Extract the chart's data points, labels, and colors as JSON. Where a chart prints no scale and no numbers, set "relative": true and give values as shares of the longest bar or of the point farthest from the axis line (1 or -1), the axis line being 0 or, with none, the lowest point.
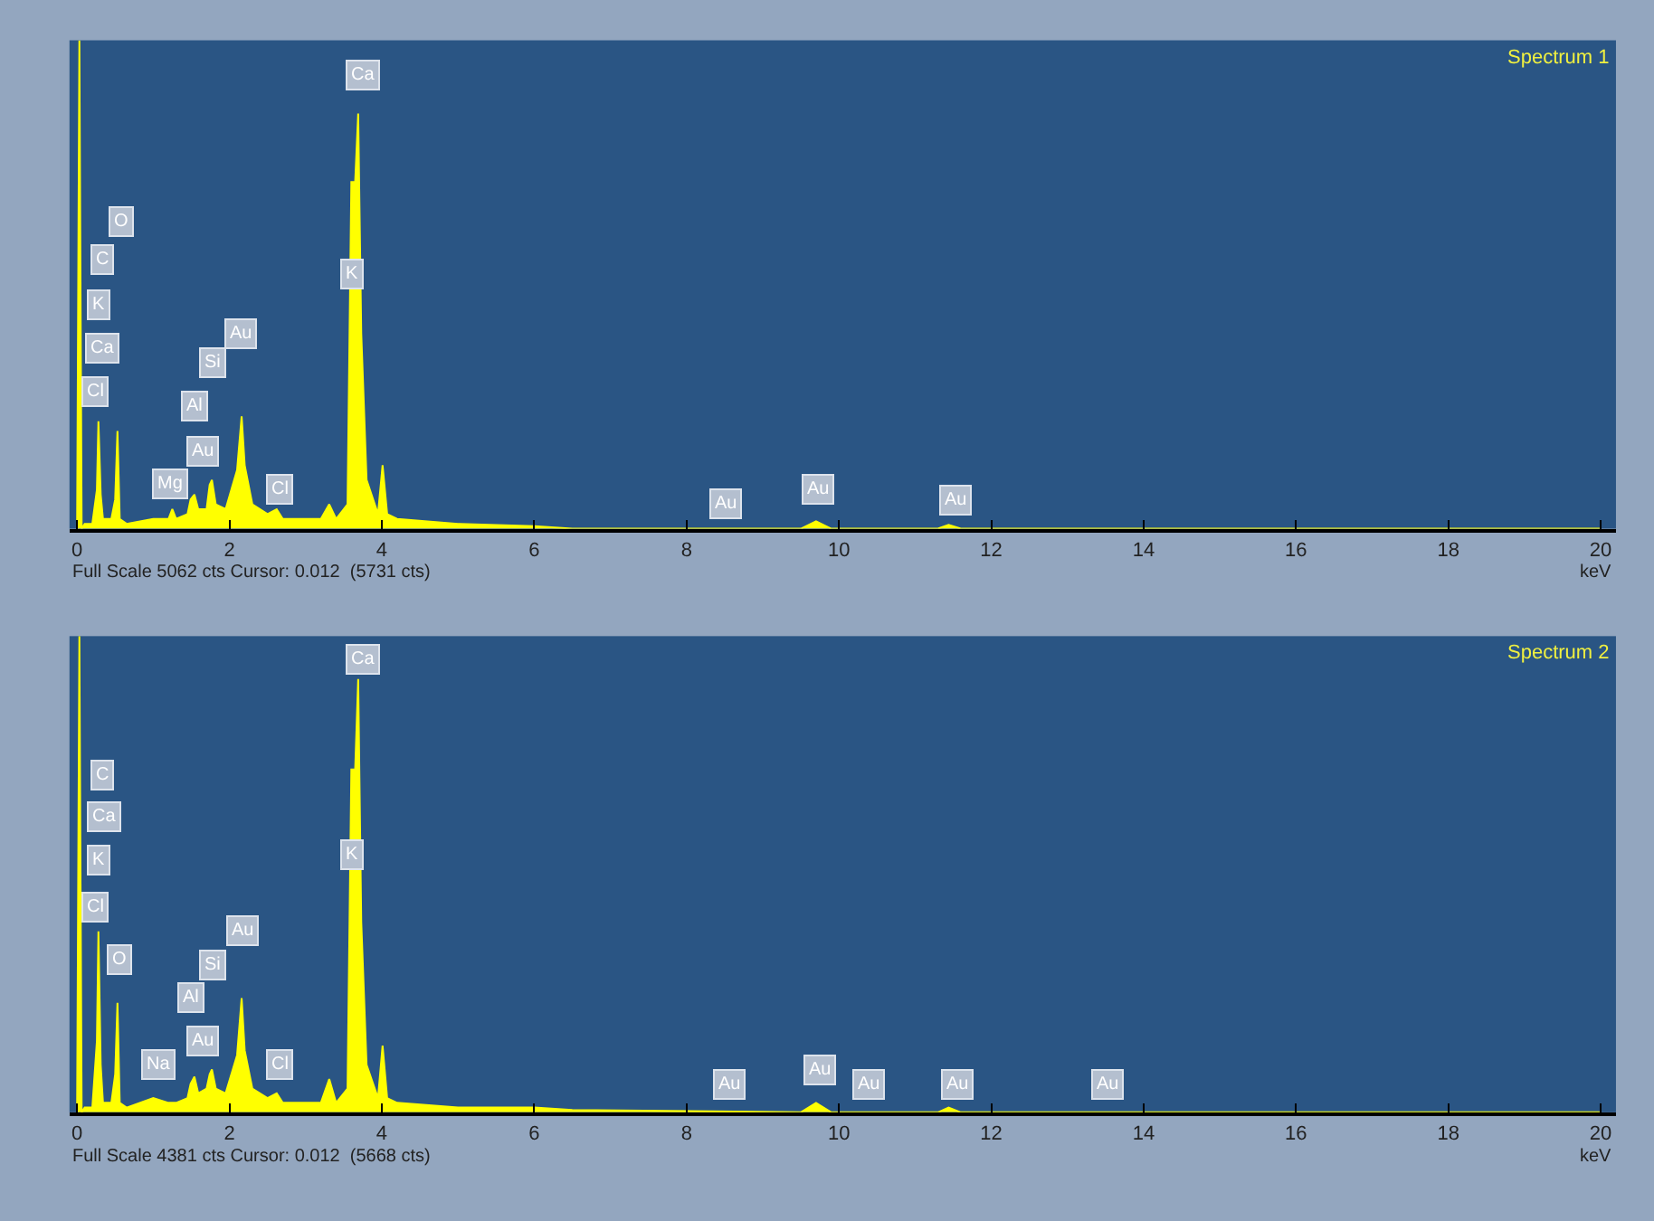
{
  "chart_data": [
    {
      "type": "area",
      "relative": true,
      "title": "Spectrum 1",
      "xlabel": "keV",
      "color": "#ffff00",
      "xlim": [
        -0.1,
        20.2
      ],
      "xticks": [
        0,
        2,
        4,
        6,
        8,
        10,
        12,
        14,
        16,
        18,
        20
      ],
      "x": [
        0,
        0.03,
        0.06,
        0.1,
        0.2,
        0.26,
        0.28,
        0.31,
        0.34,
        0.45,
        0.5,
        0.53,
        0.56,
        0.65,
        1.0,
        1.2,
        1.25,
        1.3,
        1.45,
        1.49,
        1.54,
        1.59,
        1.7,
        1.74,
        1.77,
        1.82,
        1.95,
        2.1,
        2.16,
        2.2,
        2.3,
        2.5,
        2.62,
        2.7,
        3.2,
        3.31,
        3.4,
        3.55,
        3.6,
        3.65,
        3.69,
        3.73,
        3.8,
        3.95,
        4.01,
        4.07,
        4.2,
        5.0,
        6.0,
        6.5,
        9.5,
        9.7,
        9.9,
        11.3,
        11.44,
        11.6,
        20
      ],
      "values": [
        0,
        1,
        0,
        0.01,
        0.01,
        0.08,
        0.22,
        0.07,
        0.02,
        0.02,
        0.06,
        0.2,
        0.02,
        0.01,
        0.02,
        0.02,
        0.04,
        0.02,
        0.03,
        0.06,
        0.07,
        0.04,
        0.04,
        0.09,
        0.1,
        0.05,
        0.04,
        0.12,
        0.23,
        0.13,
        0.05,
        0.03,
        0.04,
        0.02,
        0.02,
        0.05,
        0.02,
        0.05,
        0.71,
        0.71,
        0.85,
        0.4,
        0.1,
        0.03,
        0.13,
        0.03,
        0.02,
        0.01,
        0.005,
        0,
        0,
        0.015,
        0,
        0,
        0.008,
        0,
        0
      ],
      "annotations": [
        "Full Scale 5062 cts Cursor: 0.012  (5731 cts)",
        {
          "text": "Ca",
          "x": 3.74,
          "y": 0.93
        },
        {
          "text": "O",
          "x": 0.59,
          "y": 0.63
        },
        {
          "text": "C",
          "x": 0.32,
          "y": 0.55
        },
        {
          "text": "K",
          "x": 0.29,
          "y": 0.46
        },
        {
          "text": "Ca",
          "x": 0.32,
          "y": 0.37
        },
        {
          "text": "Cl",
          "x": 0.24,
          "y": 0.28
        },
        {
          "text": "K",
          "x": 3.6,
          "y": 0.52
        },
        {
          "text": "Au",
          "x": 2.14,
          "y": 0.4
        },
        {
          "text": "Si",
          "x": 1.77,
          "y": 0.34
        },
        {
          "text": "Al",
          "x": 1.53,
          "y": 0.25
        },
        {
          "text": "Au",
          "x": 1.66,
          "y": 0.16
        },
        {
          "text": "Mg",
          "x": 1.23,
          "y": 0.09
        },
        {
          "text": "Cl",
          "x": 2.65,
          "y": 0.08
        },
        {
          "text": "Au",
          "x": 8.51,
          "y": 0.05
        },
        {
          "text": "Au",
          "x": 9.72,
          "y": 0.08
        },
        {
          "text": "Au",
          "x": 11.53,
          "y": 0.06
        }
      ]
    },
    {
      "type": "area",
      "relative": true,
      "title": "Spectrum 2",
      "xlabel": "keV",
      "color": "#ffff00",
      "xlim": [
        -0.1,
        20.2
      ],
      "xticks": [
        0,
        2,
        4,
        6,
        8,
        10,
        12,
        14,
        16,
        18,
        20
      ],
      "x": [
        0,
        0.03,
        0.06,
        0.1,
        0.2,
        0.26,
        0.28,
        0.31,
        0.34,
        0.45,
        0.5,
        0.53,
        0.56,
        0.65,
        1.0,
        1.2,
        1.25,
        1.3,
        1.45,
        1.49,
        1.54,
        1.59,
        1.7,
        1.74,
        1.77,
        1.82,
        1.95,
        2.1,
        2.16,
        2.2,
        2.3,
        2.5,
        2.62,
        2.7,
        3.2,
        3.31,
        3.4,
        3.55,
        3.6,
        3.65,
        3.69,
        3.73,
        3.8,
        3.95,
        4.01,
        4.07,
        4.2,
        5.0,
        6.0,
        6.5,
        9.5,
        9.7,
        9.9,
        11.3,
        11.44,
        11.6,
        20
      ],
      "values": [
        0,
        1,
        0,
        0.01,
        0.01,
        0.15,
        0.38,
        0.1,
        0.02,
        0.02,
        0.08,
        0.23,
        0.02,
        0.01,
        0.03,
        0.02,
        0.02,
        0.02,
        0.03,
        0.06,
        0.075,
        0.04,
        0.05,
        0.08,
        0.09,
        0.05,
        0.04,
        0.12,
        0.24,
        0.13,
        0.05,
        0.03,
        0.04,
        0.02,
        0.02,
        0.07,
        0.02,
        0.05,
        0.72,
        0.72,
        0.91,
        0.4,
        0.1,
        0.03,
        0.14,
        0.03,
        0.02,
        0.01,
        0.01,
        0.005,
        0,
        0.02,
        0,
        0,
        0.01,
        0,
        0
      ],
      "annotations": [
        "Full Scale 4381 cts Cursor: 0.012  (5668 cts)",
        {
          "text": "Ca",
          "x": 3.76,
          "y": 0.95
        },
        {
          "text": "C",
          "x": 0.32,
          "y": 0.71
        },
        {
          "text": "Ca",
          "x": 0.36,
          "y": 0.62
        },
        {
          "text": "K",
          "x": 0.28,
          "y": 0.53
        },
        {
          "text": "Cl",
          "x": 0.24,
          "y": 0.43
        },
        {
          "text": "O",
          "x": 0.55,
          "y": 0.32
        },
        {
          "text": "K",
          "x": 3.62,
          "y": 0.54
        },
        {
          "text": "Au",
          "x": 2.18,
          "y": 0.38
        },
        {
          "text": "Si",
          "x": 1.77,
          "y": 0.31
        },
        {
          "text": "Al",
          "x": 1.5,
          "y": 0.24
        },
        {
          "text": "Au",
          "x": 1.66,
          "y": 0.15
        },
        {
          "text": "Na",
          "x": 1.07,
          "y": 0.1
        },
        {
          "text": "Cl",
          "x": 2.65,
          "y": 0.1
        },
        {
          "text": "Au",
          "x": 8.56,
          "y": 0.06
        },
        {
          "text": "Au",
          "x": 9.75,
          "y": 0.09
        },
        {
          "text": "Au",
          "x": 10.39,
          "y": 0.06
        },
        {
          "text": "Au",
          "x": 11.55,
          "y": 0.06
        },
        {
          "text": "Au",
          "x": 13.52,
          "y": 0.06
        }
      ]
    }
  ]
}
